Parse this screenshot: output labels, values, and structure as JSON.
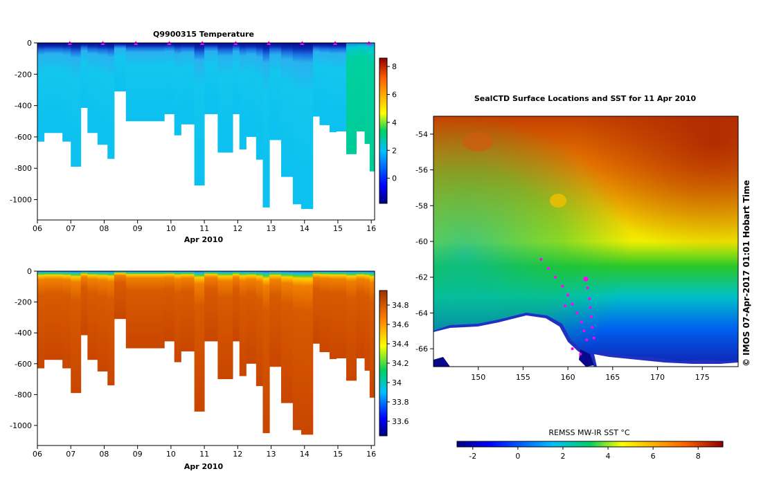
{
  "chart_data": [
    {
      "type": "heatmap",
      "id": "temperature",
      "title": "Q9900315  Temperature",
      "xlabel": "Apr 2010",
      "xticks": [
        "06",
        "07",
        "08",
        "09",
        "10",
        "11",
        "12",
        "13",
        "14",
        "15",
        "16"
      ],
      "xlim": [
        6.0,
        16.1
      ],
      "ylim": [
        -1130,
        0
      ],
      "yticks": [
        0,
        -200,
        -400,
        -600,
        -800,
        -1000
      ],
      "ytick_labels": [
        "0",
        "-200",
        "-400",
        "-600",
        "-800",
        "-1000"
      ],
      "colorbar": {
        "min": -1.8,
        "max": 8.6,
        "ticks": [
          0,
          2,
          4,
          6,
          8
        ],
        "tick_labels": [
          "0",
          "2",
          "4",
          "6",
          "8"
        ]
      },
      "surface_markers": [
        6.97,
        7.96,
        8.95,
        9.95,
        10.94,
        11.94,
        12.93,
        13.93,
        14.92,
        15.93
      ],
      "profiles": [
        {
          "t0": 6.0,
          "t1": 6.2,
          "depth": 630
        },
        {
          "t0": 6.2,
          "t1": 6.75,
          "depth": 575
        },
        {
          "t0": 6.75,
          "t1": 7.0,
          "depth": 630
        },
        {
          "t0": 7.0,
          "t1": 7.3,
          "depth": 790
        },
        {
          "t0": 7.3,
          "t1": 7.5,
          "depth": 415
        },
        {
          "t0": 7.5,
          "t1": 7.8,
          "depth": 575
        },
        {
          "t0": 7.8,
          "t1": 8.1,
          "depth": 650
        },
        {
          "t0": 8.1,
          "t1": 8.3,
          "depth": 740
        },
        {
          "t0": 8.3,
          "t1": 8.65,
          "depth": 310
        },
        {
          "t0": 8.65,
          "t1": 9.0,
          "depth": 500
        },
        {
          "t0": 9.0,
          "t1": 9.8,
          "depth": 500
        },
        {
          "t0": 9.8,
          "t1": 10.1,
          "depth": 455
        },
        {
          "t0": 10.1,
          "t1": 10.3,
          "depth": 590
        },
        {
          "t0": 10.3,
          "t1": 10.7,
          "depth": 520
        },
        {
          "t0": 10.7,
          "t1": 11.0,
          "depth": 910
        },
        {
          "t0": 11.0,
          "t1": 11.4,
          "depth": 455
        },
        {
          "t0": 11.4,
          "t1": 11.85,
          "depth": 700
        },
        {
          "t0": 11.85,
          "t1": 12.05,
          "depth": 455
        },
        {
          "t0": 12.05,
          "t1": 12.25,
          "depth": 680
        },
        {
          "t0": 12.25,
          "t1": 12.55,
          "depth": 600
        },
        {
          "t0": 12.55,
          "t1": 12.75,
          "depth": 745
        },
        {
          "t0": 12.75,
          "t1": 12.95,
          "depth": 1050
        },
        {
          "t0": 12.95,
          "t1": 13.3,
          "depth": 620
        },
        {
          "t0": 13.3,
          "t1": 13.65,
          "depth": 855
        },
        {
          "t0": 13.65,
          "t1": 13.9,
          "depth": 1030
        },
        {
          "t0": 13.9,
          "t1": 14.25,
          "depth": 1060
        },
        {
          "t0": 14.25,
          "t1": 14.45,
          "depth": 470
        },
        {
          "t0": 14.45,
          "t1": 14.75,
          "depth": 525
        },
        {
          "t0": 14.75,
          "t1": 14.95,
          "depth": 570
        },
        {
          "t0": 14.95,
          "t1": 15.25,
          "depth": 565
        },
        {
          "t0": 15.25,
          "t1": 15.55,
          "depth": 710
        },
        {
          "t0": 15.55,
          "t1": 15.8,
          "depth": 565
        },
        {
          "t0": 15.8,
          "t1": 15.95,
          "depth": 645
        },
        {
          "t0": 15.95,
          "t1": 16.1,
          "depth": 820
        }
      ]
    },
    {
      "type": "heatmap",
      "id": "salinity",
      "title": "",
      "xlabel": "Apr 2010",
      "xticks": [
        "06",
        "07",
        "08",
        "09",
        "10",
        "11",
        "12",
        "13",
        "14",
        "15",
        "16"
      ],
      "xlim": [
        6.0,
        16.1
      ],
      "ylim": [
        -1130,
        0
      ],
      "yticks": [
        0,
        -200,
        -400,
        -600,
        -800,
        -1000
      ],
      "ytick_labels": [
        "0",
        "-200",
        "-400",
        "-600",
        "-800",
        "-1000"
      ],
      "colorbar": {
        "min": 33.45,
        "max": 34.95,
        "ticks": [
          33.6,
          33.8,
          34.0,
          34.2,
          34.4,
          34.6,
          34.8
        ],
        "tick_labels": [
          "33.6",
          "33.8",
          "34",
          "34.2",
          "34.4",
          "34.6",
          "34.8"
        ]
      }
    },
    {
      "type": "heatmap",
      "id": "sst-map",
      "title": "SealCTD Surface Locations and SST for 11 Apr 2010",
      "xlim": [
        145.0,
        179.0
      ],
      "ylim": [
        -67.0,
        -53.0
      ],
      "xticks": [
        150,
        155,
        160,
        165,
        170,
        175
      ],
      "xtick_labels": [
        "150",
        "155",
        "160",
        "165",
        "170",
        "175"
      ],
      "yticks": [
        -54,
        -56,
        -58,
        -60,
        -62,
        -64,
        -66
      ],
      "ytick_labels": [
        "-54",
        "-56",
        "-58",
        "-60",
        "-62",
        "-64",
        "-66"
      ],
      "track": [
        [
          157.0,
          -61.0
        ],
        [
          157.8,
          -61.5
        ],
        [
          158.6,
          -62.0
        ],
        [
          159.4,
          -62.5
        ],
        [
          160.0,
          -63.0
        ],
        [
          160.5,
          -63.5
        ],
        [
          161.0,
          -64.0
        ],
        [
          161.5,
          -64.5
        ],
        [
          161.8,
          -65.0
        ],
        [
          162.1,
          -65.5
        ],
        [
          162.0,
          -62.1
        ],
        [
          162.2,
          -62.6
        ],
        [
          162.4,
          -63.2
        ],
        [
          162.5,
          -63.7
        ],
        [
          162.6,
          -64.2
        ],
        [
          162.7,
          -64.8
        ],
        [
          162.9,
          -65.4
        ],
        [
          159.7,
          -63.6
        ],
        [
          160.5,
          -66.0
        ],
        [
          161.4,
          -66.3
        ]
      ],
      "colorbar": {
        "label": "REMSS MW-IR SST °C",
        "min": -2.7,
        "max": 9.1,
        "ticks": [
          -2,
          0,
          2,
          4,
          6,
          8
        ],
        "tick_labels": [
          "-2",
          "0",
          "2",
          "4",
          "6",
          "8"
        ]
      }
    }
  ],
  "credit": "© IMOS 07-Apr-2017 01:01 Hobart Time",
  "colors": {
    "marker": "#ff00ff",
    "land": "#ffffff",
    "deep_ocean": "#08088a"
  }
}
